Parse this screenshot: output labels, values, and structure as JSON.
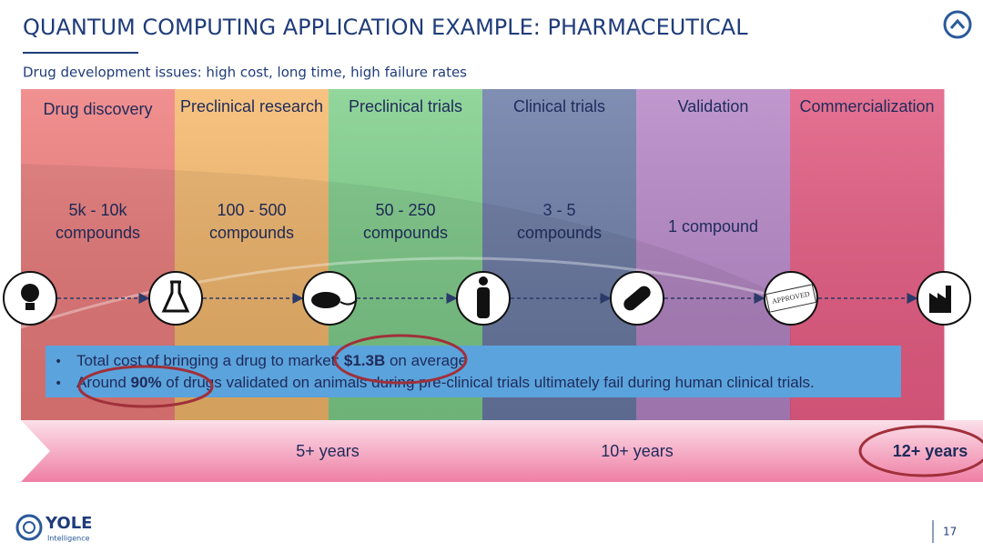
{
  "header": {
    "title": "QUANTUM COMPUTING APPLICATION EXAMPLE: PHARMACEUTICAL",
    "subtitle": "Drug development issues: high cost, long time, high failure rates"
  },
  "stages": [
    {
      "name": "Drug discovery",
      "count": [
        "5k - 10k",
        "compounds"
      ]
    },
    {
      "name": "Preclinical research",
      "count": [
        "100 - 500",
        "compounds"
      ]
    },
    {
      "name": "Preclinical trials",
      "count": [
        "50 - 250",
        "compounds"
      ]
    },
    {
      "name": "Clinical trials",
      "count": [
        "3 - 5",
        "compounds"
      ]
    },
    {
      "name": "Validation",
      "count": [
        "1 compound"
      ]
    },
    {
      "name": "Commercialization",
      "count": []
    }
  ],
  "stamp": "APPROVED",
  "bullets": [
    [
      "Total cost of bringing a drug to market: ",
      "$1.3B",
      " on average"
    ],
    [
      "Around ",
      "90%",
      " of drugs validated on animals during pre-clinical trials ultimately fail during human clinical trials."
    ]
  ],
  "timeline": [
    "5+ years",
    "10+ years",
    "12+ years"
  ],
  "footer": {
    "logo": "YOLE",
    "logo_sub": "Intelligence",
    "page": "17"
  }
}
